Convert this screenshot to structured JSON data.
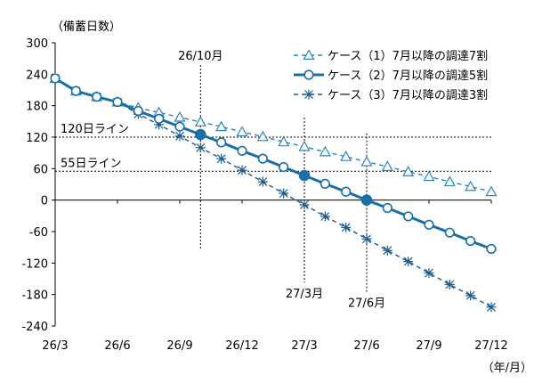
{
  "chart_data": {
    "type": "line",
    "ylabel": "（備蓄日数）",
    "xunit": "（年/月）",
    "ylim": [
      -240,
      300
    ],
    "yticks": [
      300,
      240,
      180,
      120,
      60,
      0,
      -60,
      -120,
      -180,
      -240
    ],
    "ytick_labels": [
      "300",
      "240",
      "180",
      "120",
      "60",
      "0",
      "-60",
      "-120",
      "-180",
      "-240"
    ],
    "xtick_labels": [
      "26/3",
      "26/6",
      "26/9",
      "26/12",
      "27/3",
      "27/6",
      "27/9",
      "27/12"
    ],
    "xtick_months": [
      0,
      3,
      6,
      9,
      12,
      15,
      18,
      21
    ],
    "months": [
      0,
      1,
      2,
      3,
      4,
      5,
      6,
      7,
      8,
      9,
      10,
      11,
      12,
      13,
      14,
      15,
      16,
      17,
      18,
      19,
      20,
      21
    ],
    "series": [
      {
        "name": "ケース（1）7月以降の調達7割",
        "style": "dashed",
        "marker": "triangle",
        "color": "#2e86b8",
        "values": [
          232,
          208,
          197,
          187,
          176,
          167,
          158,
          149,
          140,
          130,
          121,
          111,
          102,
          92,
          83,
          73,
          64,
          54,
          45,
          35,
          26,
          16
        ]
      },
      {
        "name": "ケース（2）7月以降の調達5割",
        "style": "solid",
        "marker": "circle",
        "color": "#1a6fa8",
        "values": [
          232,
          208,
          197,
          187,
          170,
          155,
          140,
          125,
          110,
          94,
          79,
          63,
          47,
          31,
          16,
          0,
          -15,
          -31,
          -47,
          -62,
          -78,
          -93
        ]
      },
      {
        "name": "ケース（3）7月以降の調達3割",
        "style": "dashed",
        "marker": "asterisk",
        "color": "#1a5c8a",
        "values": [
          232,
          208,
          197,
          187,
          164,
          144,
          122,
          100,
          79,
          57,
          35,
          13,
          -9,
          -31,
          -52,
          -74,
          -96,
          -117,
          -139,
          -161,
          -182,
          -204
        ]
      }
    ],
    "reference_lines": [
      {
        "label": "120日ライン",
        "y": 120
      },
      {
        "label": "55日ライン",
        "y": 55
      }
    ],
    "annotations": [
      {
        "label": "26/10月",
        "month": 7,
        "y": 125
      },
      {
        "label": "27/3月",
        "month": 12,
        "y": 47
      },
      {
        "label": "27/6月",
        "month": 15,
        "y": 0
      }
    ],
    "legend_placement": "top-right",
    "grid": false
  },
  "colors": {
    "axis": "#000000",
    "reference": "#000000"
  }
}
